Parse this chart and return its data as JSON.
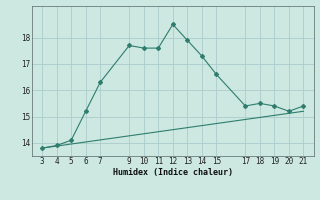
{
  "xlabel": "Humidex (Indice chaleur)",
  "line1_x": [
    3,
    4,
    5,
    6,
    7,
    9,
    10,
    11,
    12,
    13,
    14,
    15,
    17,
    18,
    19,
    20,
    21
  ],
  "line1_y": [
    13.8,
    13.9,
    14.1,
    15.2,
    16.3,
    17.7,
    17.6,
    17.6,
    18.5,
    17.9,
    17.3,
    16.6,
    15.4,
    15.5,
    15.4,
    15.2,
    15.4
  ],
  "line2_x": [
    3,
    21
  ],
  "line2_y": [
    13.8,
    15.2
  ],
  "color": "#2e7d6e",
  "bg_color": "#cce8e0",
  "grid_color": "#aacccc",
  "ylim": [
    13.5,
    19.2
  ],
  "yticks": [
    14,
    15,
    16,
    17,
    18
  ],
  "xticks": [
    3,
    4,
    5,
    6,
    7,
    9,
    10,
    11,
    12,
    13,
    14,
    15,
    17,
    18,
    19,
    20,
    21
  ]
}
